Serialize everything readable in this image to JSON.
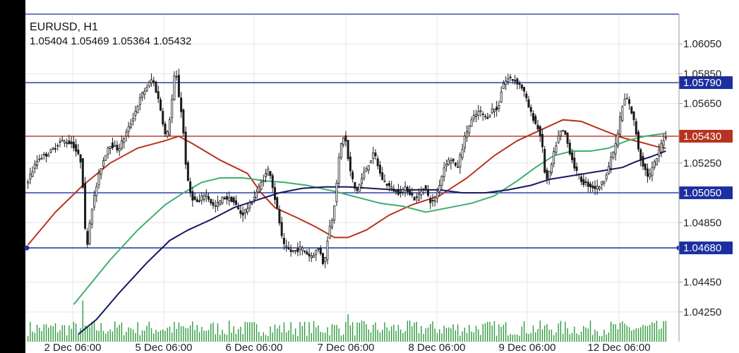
{
  "header": {
    "symbol_timeframe": "EURUSD, H1",
    "ohlc_readout": "1.05404 1.05469 1.05364 1.05432"
  },
  "colors": {
    "background": "#ffffff",
    "frame": "#000000",
    "grid": "#e6e6e6",
    "candle": "#1a1a1a",
    "ma_red": "#b8321f",
    "ma_green": "#3fae72",
    "ma_navy": "#141860",
    "level_blue": "#1c2fa0",
    "level_red": "#b8321f",
    "volume": "#2f9a3f",
    "axis_text": "#222222"
  },
  "chart_data": {
    "type": "candlestick",
    "title": "EURUSD, H1",
    "ylim": [
      1.0405,
      1.0625
    ],
    "y_ticks": [
      "1.06050",
      "1.05850",
      "1.05650",
      "1.05250",
      "1.04850",
      "1.04450",
      "1.04250"
    ],
    "x_ticks": [
      "2 Dec 06:00",
      "5 Dec 06:00",
      "6 Dec 06:00",
      "7 Dec 06:00",
      "8 Dec 06:00",
      "9 Dec 06:00",
      "12 Dec 06:00"
    ],
    "horizontal_levels": [
      {
        "label": "1.05790",
        "value": 1.0579,
        "color": "#1c2fa0"
      },
      {
        "label": "1.05430",
        "value": 1.0543,
        "color": "#b8321f"
      },
      {
        "label": "1.05050",
        "value": 1.0505,
        "color": "#1c2fa0"
      },
      {
        "label": "1.04680",
        "value": 1.0468,
        "color": "#1c2fa0"
      }
    ],
    "price_path": [
      [
        0,
        1.0512
      ],
      [
        5,
        1.0528
      ],
      [
        10,
        1.0532
      ],
      [
        15,
        1.054
      ],
      [
        20,
        1.0538
      ],
      [
        24,
        1.0525
      ],
      [
        26,
        1.0465
      ],
      [
        28,
        1.0492
      ],
      [
        32,
        1.052
      ],
      [
        36,
        1.0538
      ],
      [
        40,
        1.0534
      ],
      [
        45,
        1.055
      ],
      [
        50,
        1.057
      ],
      [
        55,
        1.0582
      ],
      [
        58,
        1.0565
      ],
      [
        61,
        1.054
      ],
      [
        63,
        1.056
      ],
      [
        65,
        1.059
      ],
      [
        66,
        1.0575
      ],
      [
        68,
        1.0555
      ],
      [
        70,
        1.0515
      ],
      [
        72,
        1.0502
      ],
      [
        75,
        1.0498
      ],
      [
        78,
        1.0505
      ],
      [
        82,
        1.0495
      ],
      [
        86,
        1.0502
      ],
      [
        90,
        1.05
      ],
      [
        94,
        1.049
      ],
      [
        98,
        1.0498
      ],
      [
        102,
        1.051
      ],
      [
        106,
        1.0522
      ],
      [
        108,
        1.0505
      ],
      [
        110,
        1.049
      ],
      [
        112,
        1.047
      ],
      [
        116,
        1.0465
      ],
      [
        120,
        1.0468
      ],
      [
        124,
        1.0462
      ],
      [
        128,
        1.0468
      ],
      [
        130,
        1.0455
      ],
      [
        132,
        1.048
      ],
      [
        134,
        1.049
      ],
      [
        137,
        1.0535
      ],
      [
        139,
        1.0545
      ],
      [
        141,
        1.0522
      ],
      [
        144,
        1.0505
      ],
      [
        148,
        1.052
      ],
      [
        152,
        1.0532
      ],
      [
        155,
        1.0515
      ],
      [
        158,
        1.051
      ],
      [
        162,
        1.0505
      ],
      [
        166,
        1.0508
      ],
      [
        170,
        1.05
      ],
      [
        174,
        1.051
      ],
      [
        176,
        1.05
      ],
      [
        178,
        1.0498
      ],
      [
        180,
        1.0508
      ],
      [
        183,
        1.0525
      ],
      [
        186,
        1.0528
      ],
      [
        188,
        1.052
      ],
      [
        192,
        1.0545
      ],
      [
        195,
        1.0555
      ],
      [
        198,
        1.056
      ],
      [
        201,
        1.0555
      ],
      [
        204,
        1.0562
      ],
      [
        206,
        1.056
      ],
      [
        208,
        1.0578
      ],
      [
        211,
        1.0582
      ],
      [
        214,
        1.058
      ],
      [
        217,
        1.0575
      ],
      [
        220,
        1.056
      ],
      [
        223,
        1.055
      ],
      [
        225,
        1.0542
      ],
      [
        227,
        1.0512
      ],
      [
        229,
        1.052
      ],
      [
        231,
        1.0535
      ],
      [
        233,
        1.0545
      ],
      [
        235,
        1.0547
      ],
      [
        237,
        1.0535
      ],
      [
        240,
        1.052
      ],
      [
        243,
        1.0512
      ],
      [
        246,
        1.051
      ],
      [
        249,
        1.0508
      ],
      [
        252,
        1.0512
      ],
      [
        255,
        1.0525
      ],
      [
        258,
        1.054
      ],
      [
        260,
        1.056
      ],
      [
        262,
        1.057
      ],
      [
        264,
        1.0562
      ],
      [
        266,
        1.055
      ],
      [
        268,
        1.053
      ],
      [
        270,
        1.0522
      ],
      [
        272,
        1.0515
      ],
      [
        274,
        1.0523
      ],
      [
        276,
        1.053
      ],
      [
        277,
        1.0536
      ],
      [
        279,
        1.0543
      ]
    ],
    "moving_averages": [
      {
        "color": "#b8321f",
        "points": [
          [
            0,
            1.047
          ],
          [
            12,
            1.0492
          ],
          [
            24,
            1.051
          ],
          [
            36,
            1.0525
          ],
          [
            48,
            1.0535
          ],
          [
            60,
            1.054
          ],
          [
            66,
            1.0543
          ],
          [
            72,
            1.0538
          ],
          [
            84,
            1.0527
          ],
          [
            96,
            1.0518
          ],
          [
            102,
            1.0505
          ],
          [
            108,
            1.0495
          ],
          [
            118,
            1.0488
          ],
          [
            126,
            1.0482
          ],
          [
            134,
            1.0475
          ],
          [
            140,
            1.0475
          ],
          [
            148,
            1.048
          ],
          [
            158,
            1.049
          ],
          [
            168,
            1.0497
          ],
          [
            180,
            1.0503
          ],
          [
            192,
            1.0515
          ],
          [
            204,
            1.053
          ],
          [
            214,
            1.054
          ],
          [
            224,
            1.0547
          ],
          [
            234,
            1.0554
          ],
          [
            242,
            1.0553
          ],
          [
            250,
            1.0548
          ],
          [
            260,
            1.0542
          ],
          [
            268,
            1.0539
          ],
          [
            275,
            1.0536
          ],
          [
            279,
            1.0535
          ]
        ]
      },
      {
        "color": "#3fae72",
        "points": [
          [
            20,
            1.043
          ],
          [
            28,
            1.0445
          ],
          [
            36,
            1.046
          ],
          [
            48,
            1.048
          ],
          [
            60,
            1.0497
          ],
          [
            68,
            1.0505
          ],
          [
            76,
            1.0512
          ],
          [
            84,
            1.0515
          ],
          [
            94,
            1.0515
          ],
          [
            104,
            1.0513
          ],
          [
            112,
            1.0512
          ],
          [
            122,
            1.051
          ],
          [
            134,
            1.0506
          ],
          [
            144,
            1.0502
          ],
          [
            154,
            1.0498
          ],
          [
            164,
            1.0496
          ],
          [
            174,
            1.0492
          ],
          [
            184,
            1.0495
          ],
          [
            194,
            1.0498
          ],
          [
            204,
            1.0503
          ],
          [
            214,
            1.0513
          ],
          [
            222,
            1.0522
          ],
          [
            230,
            1.053
          ],
          [
            238,
            1.0533
          ],
          [
            246,
            1.0533
          ],
          [
            254,
            1.0535
          ],
          [
            262,
            1.054
          ],
          [
            270,
            1.0543
          ],
          [
            279,
            1.0545
          ]
        ]
      },
      {
        "color": "#141860",
        "points": [
          [
            22,
            1.041
          ],
          [
            30,
            1.042
          ],
          [
            40,
            1.0438
          ],
          [
            52,
            1.0458
          ],
          [
            62,
            1.0473
          ],
          [
            70,
            1.048
          ],
          [
            80,
            1.0487
          ],
          [
            90,
            1.0495
          ],
          [
            100,
            1.05
          ],
          [
            110,
            1.0505
          ],
          [
            120,
            1.0508
          ],
          [
            130,
            1.0509
          ],
          [
            140,
            1.0509
          ],
          [
            150,
            1.0508
          ],
          [
            160,
            1.0507
          ],
          [
            170,
            1.0507
          ],
          [
            180,
            1.0507
          ],
          [
            190,
            1.0505
          ],
          [
            200,
            1.0505
          ],
          [
            210,
            1.0507
          ],
          [
            220,
            1.051
          ],
          [
            228,
            1.0514
          ],
          [
            236,
            1.0516
          ],
          [
            244,
            1.0518
          ],
          [
            252,
            1.052
          ],
          [
            260,
            1.0522
          ],
          [
            266,
            1.0526
          ],
          [
            272,
            1.0529
          ],
          [
            279,
            1.0533
          ]
        ]
      }
    ]
  }
}
